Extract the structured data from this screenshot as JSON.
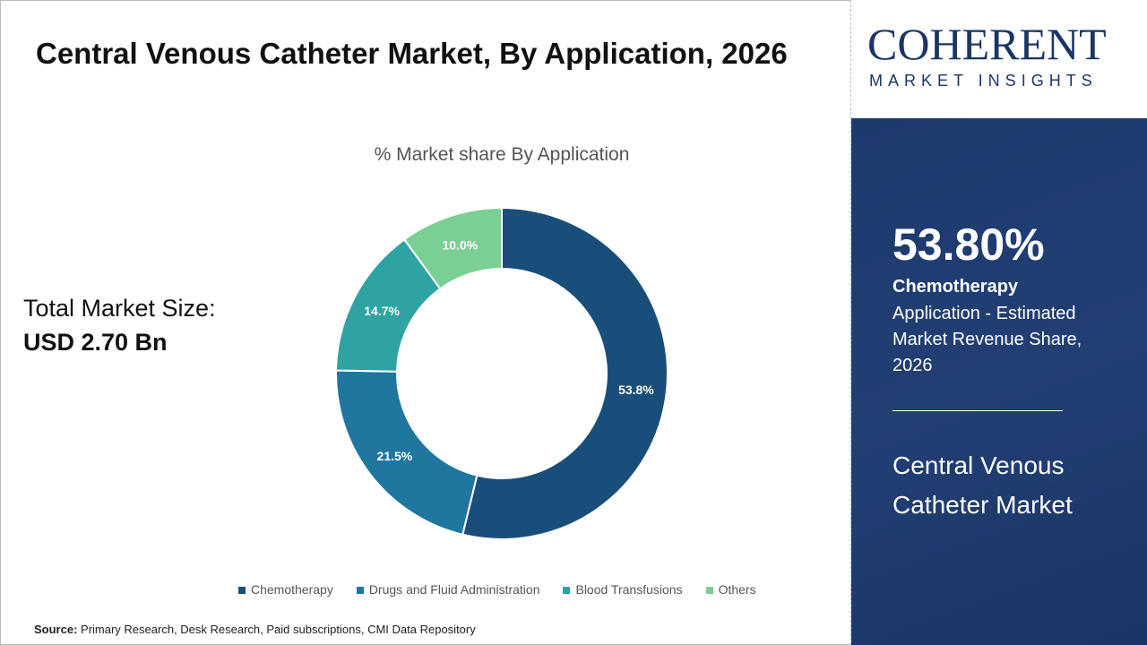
{
  "title": "Central Venous Catheter Market,  By Application, 2026",
  "total_label": "Total Market Size:",
  "total_value": "USD 2.70 Bn",
  "source_label": "Source:",
  "source_text": "Primary Research, Desk Research, Paid subscriptions, CMI Data Repository",
  "logo": {
    "main": "COHERENT",
    "sub": "MARKET INSIGHTS"
  },
  "panel": {
    "percent": "53.80%",
    "segment": "Chemotherapy",
    "description": "Application - Estimated Market Revenue Share, 2026",
    "market": "Central Venous Catheter Market"
  },
  "chart_data": {
    "type": "pie",
    "donut": true,
    "title": "% Market share  By Application",
    "categories": [
      "Chemotherapy",
      "Drugs and Fluid Administration",
      "Blood Transfusions",
      "Others"
    ],
    "values": [
      53.8,
      21.5,
      14.7,
      10.0
    ],
    "labels": [
      "53.8%",
      "21.5%",
      "14.7%",
      "10.0%"
    ],
    "colors": [
      "#1a4e7a",
      "#1f77a0",
      "#2fa3a3",
      "#7acf94"
    ],
    "legend": "bottom"
  }
}
